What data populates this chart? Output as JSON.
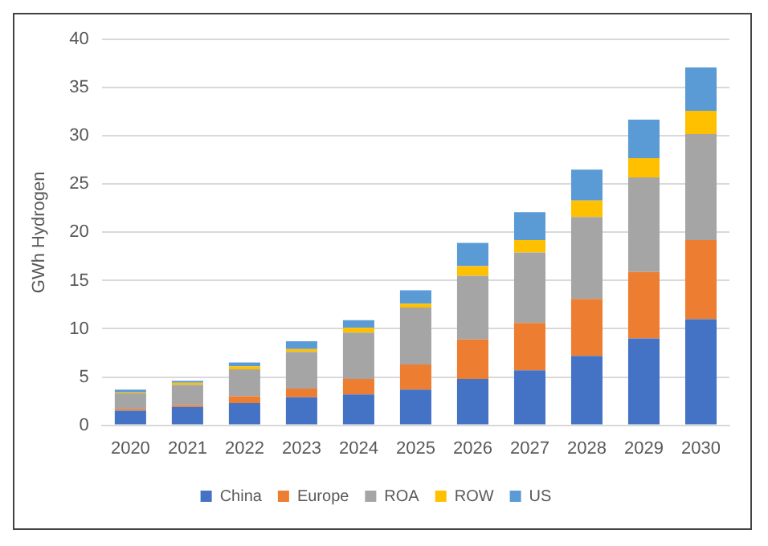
{
  "chart_data": {
    "type": "bar",
    "stacked": true,
    "ylabel": "GWh Hydrogen",
    "categories": [
      "2020",
      "2021",
      "2022",
      "2023",
      "2024",
      "2025",
      "2026",
      "2027",
      "2028",
      "2029",
      "2030"
    ],
    "series": [
      {
        "name": "China",
        "color": "#4472c4",
        "values": [
          1.5,
          1.9,
          2.3,
          2.9,
          3.2,
          3.7,
          4.8,
          5.7,
          7.2,
          9.0,
          11.0
        ]
      },
      {
        "name": "Europe",
        "color": "#ed7d31",
        "values": [
          0.2,
          0.2,
          0.7,
          0.9,
          1.6,
          2.6,
          4.1,
          4.9,
          5.9,
          6.9,
          8.2
        ]
      },
      {
        "name": "ROA",
        "color": "#a5a5a5",
        "values": [
          1.6,
          2.1,
          2.8,
          3.8,
          4.8,
          5.9,
          6.6,
          7.3,
          8.5,
          9.8,
          11.0
        ]
      },
      {
        "name": "ROW",
        "color": "#ffc000",
        "values": [
          0.1,
          0.2,
          0.3,
          0.3,
          0.5,
          0.4,
          1.0,
          1.3,
          1.7,
          2.0,
          2.4
        ]
      },
      {
        "name": "US",
        "color": "#5b9bd5",
        "values": [
          0.3,
          0.2,
          0.4,
          0.8,
          0.8,
          1.4,
          2.4,
          2.9,
          3.2,
          4.0,
          4.5
        ]
      }
    ],
    "ylim": [
      0,
      40
    ],
    "yticks": [
      0,
      5,
      10,
      15,
      20,
      25,
      30,
      35,
      40
    ],
    "grid": "y",
    "legend": "bottom"
  }
}
